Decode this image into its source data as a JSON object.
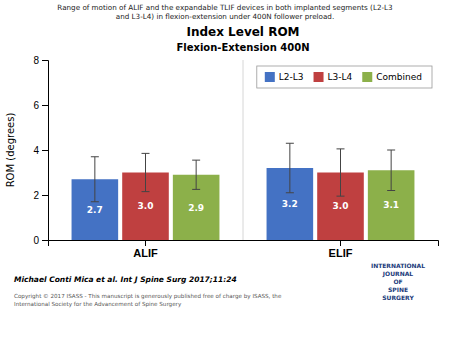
{
  "chart_data": {
    "type": "bar",
    "title": "Index Level ROM",
    "subtitle": "Flexion-Extension 400N",
    "annotations": [
      "Range of motion of ALIF and the expandable TLIF devices in both implanted segments (L2-L3\nand L3-L4) in flexion-extension under 400N follower preload.",
      "Michael Conti Mica et al. Int J Spine Surg 2017;11:24",
      "Copyright © 2017 ISASS - This manuscript is generously published free of charge by ISASS, the\nInternational Society for the Advancement of Spine Surgery",
      "INTERNATIONAL\nJOURNAL\nOF\nSPINE\nSURGERY"
    ],
    "categories": [
      "ALIF",
      "ELIF"
    ],
    "series": [
      {
        "name": "L2-L3",
        "color": "#4472C4",
        "values": [
          2.7,
          3.2
        ],
        "errors": [
          1.0,
          1.1
        ]
      },
      {
        "name": "L3-L4",
        "color": "#BF4040",
        "values": [
          3.0,
          3.0
        ],
        "value_labels": [
          "3.0",
          "3.0"
        ],
        "errors": [
          0.85,
          1.05
        ]
      },
      {
        "name": "Combined",
        "color": "#8CB04A",
        "values": [
          2.9,
          3.1
        ],
        "errors": [
          0.65,
          0.9
        ]
      }
    ],
    "ylabel": "ROM (degrees)",
    "ylim": [
      0,
      8
    ],
    "yticks": [
      0,
      2,
      4,
      6,
      8
    ],
    "grid": false,
    "legend": "upper right",
    "data_labels": true
  }
}
